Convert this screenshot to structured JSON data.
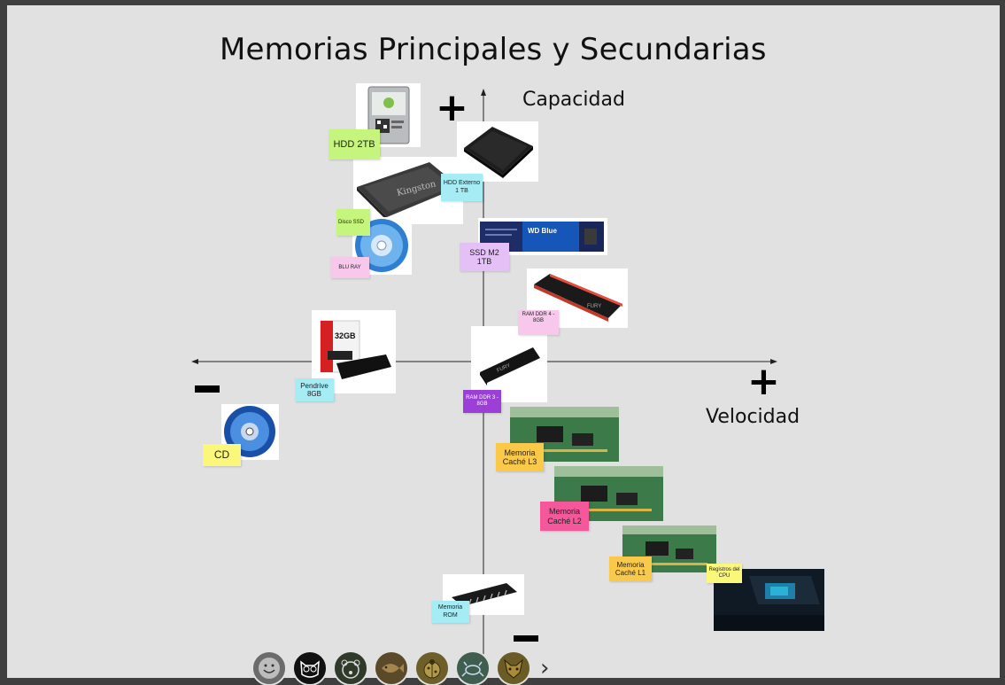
{
  "title": "Memorias Principales y Secundarias",
  "axes": {
    "y_label": "Capacidad",
    "x_label": "Velocidad",
    "plus": "+",
    "minus": "—"
  },
  "notes": {
    "hdd2tb": "HDD 2TB",
    "hdd_externo": "HDD Externo 1 TB",
    "disco_ssd": "Disco SSD",
    "bluray": "BLU RAY",
    "ssd_m2": "SSD M2 1TB",
    "ram_ddr4": "RAM DDR 4 - 8GB",
    "pendrive": "Pendrive 8GB",
    "cd": "CD",
    "ram_ddr3": "RAM DDR 3 - 8GB",
    "cache_l3": "Memoria Caché L3",
    "cache_l2": "Memoria Caché L2",
    "cache_l1": "Memoria Caché L1",
    "registros": "Registros del CPU",
    "rom": "Memoria ROM"
  },
  "image_labels": {
    "kingston": "Kingston",
    "wd_blue": "WD Blue",
    "fury": "FURY",
    "pendrive_capacity": "32GB"
  },
  "colors": {
    "note_green": "#c6f57d",
    "note_cyan": "#a6ecf5",
    "note_pink": "#f7c7ec",
    "note_purple_light": "#e4c0f7",
    "note_purple": "#9b3fd6",
    "note_orange": "#fbc94a",
    "note_magenta": "#f4589a",
    "note_yellow": "#fbf77a"
  },
  "avatars": [
    {
      "icon": "smiley-face-icon",
      "bg": "#6b6b6b"
    },
    {
      "icon": "owl-icon",
      "bg": "#111111"
    },
    {
      "icon": "bear-icon",
      "bg": "#2f3a2a"
    },
    {
      "icon": "fish-icon",
      "bg": "#5b4a2a"
    },
    {
      "icon": "ladybug-icon",
      "bg": "#6d5e2a"
    },
    {
      "icon": "crab-icon",
      "bg": "#3f5e50"
    },
    {
      "icon": "fox-icon",
      "bg": "#6b5b25"
    }
  ],
  "nav": {
    "next_icon": "chevron-right-icon"
  }
}
